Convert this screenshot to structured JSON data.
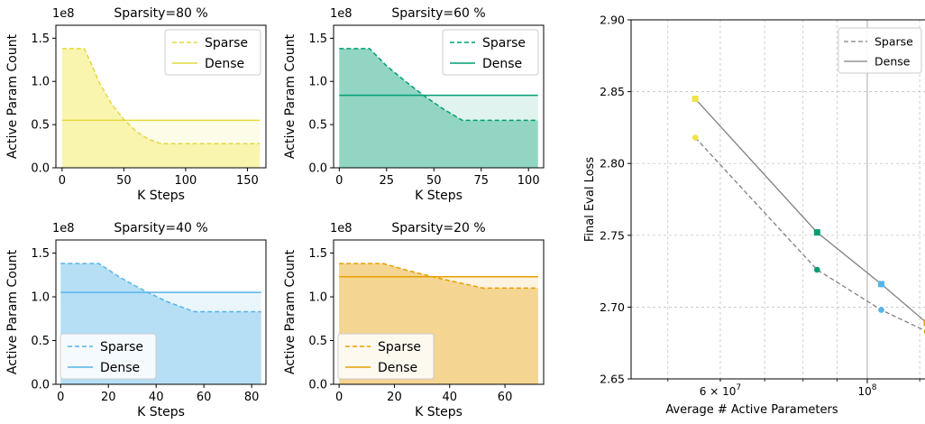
{
  "chart_data": [
    {
      "type": "area",
      "title": "Sparsity=80 %",
      "xlabel": "K Steps",
      "ylabel": "Active Param Count",
      "y_offset_label": "1e8",
      "color": "#F0E442",
      "xlim": [
        -5,
        165
      ],
      "ylim": [
        0,
        1.65
      ],
      "xticks": [
        0,
        50,
        100,
        150
      ],
      "yticks": [
        0.0,
        0.5,
        1.0,
        1.5
      ],
      "xtick_labels": [
        "0",
        "50",
        "100",
        "150"
      ],
      "ytick_labels": [
        "0.0",
        "0.5",
        "1.0",
        "1.5"
      ],
      "legend": {
        "position": "top-right",
        "entries": [
          "Sparse",
          "Dense"
        ]
      },
      "sparse": {
        "x": [
          0,
          18,
          25,
          30,
          40,
          50,
          60,
          70,
          80,
          160
        ],
        "y": [
          1.38,
          1.38,
          1.16,
          0.99,
          0.74,
          0.56,
          0.42,
          0.33,
          0.28,
          0.28
        ]
      },
      "dense": {
        "x": [
          0,
          160
        ],
        "y": [
          0.55,
          0.55
        ]
      }
    },
    {
      "type": "area",
      "title": "Sparsity=60 %",
      "xlabel": "K Steps",
      "ylabel": "Active Param Count",
      "y_offset_label": "1e8",
      "color": "#009E73",
      "xlim": [
        -3,
        108
      ],
      "ylim": [
        0,
        1.65
      ],
      "xticks": [
        0,
        25,
        50,
        75,
        100
      ],
      "yticks": [
        0.0,
        0.5,
        1.0,
        1.5
      ],
      "xtick_labels": [
        "0",
        "25",
        "50",
        "75",
        "100"
      ],
      "ytick_labels": [
        "0.0",
        "0.5",
        "1.0",
        "1.5"
      ],
      "legend": {
        "position": "top-right",
        "entries": [
          "Sparse",
          "Dense"
        ]
      },
      "sparse": {
        "x": [
          0,
          16,
          25,
          35,
          45,
          55,
          65,
          105
        ],
        "y": [
          1.38,
          1.38,
          1.18,
          1.0,
          0.83,
          0.68,
          0.55,
          0.55
        ]
      },
      "dense": {
        "x": [
          0,
          105
        ],
        "y": [
          0.84,
          0.84
        ]
      }
    },
    {
      "type": "area",
      "title": "Sparsity=40 %",
      "xlabel": "K Steps",
      "ylabel": "Active Param Count",
      "y_offset_label": "1e8",
      "color": "#56B4E9",
      "xlim": [
        -2,
        86
      ],
      "ylim": [
        0,
        1.65
      ],
      "xticks": [
        0,
        20,
        40,
        60,
        80
      ],
      "yticks": [
        0.0,
        0.5,
        1.0,
        1.5
      ],
      "xtick_labels": [
        "0",
        "20",
        "40",
        "60",
        "80"
      ],
      "ytick_labels": [
        "0.0",
        "0.5",
        "1.0",
        "1.5"
      ],
      "legend": {
        "position": "bottom-left",
        "entries": [
          "Sparse",
          "Dense"
        ]
      },
      "sparse": {
        "x": [
          0,
          16,
          25,
          35,
          45,
          56,
          84
        ],
        "y": [
          1.38,
          1.38,
          1.22,
          1.07,
          0.94,
          0.83,
          0.83
        ]
      },
      "dense": {
        "x": [
          0,
          84
        ],
        "y": [
          1.05,
          1.05
        ]
      }
    },
    {
      "type": "area",
      "title": "Sparsity=20 %",
      "xlabel": "K Steps",
      "ylabel": "Active Param Count",
      "y_offset_label": "1e8",
      "color": "#E69F00",
      "xlim": [
        -2,
        74
      ],
      "ylim": [
        0,
        1.65
      ],
      "xticks": [
        0,
        20,
        40,
        60
      ],
      "yticks": [
        0.0,
        0.5,
        1.0,
        1.5
      ],
      "xtick_labels": [
        "0",
        "20",
        "40",
        "60"
      ],
      "ytick_labels": [
        "0.0",
        "0.5",
        "1.0",
        "1.5"
      ],
      "legend": {
        "position": "bottom-left",
        "entries": [
          "Sparse",
          "Dense"
        ]
      },
      "sparse": {
        "x": [
          0,
          16,
          25,
          35,
          45,
          52,
          72
        ],
        "y": [
          1.38,
          1.38,
          1.3,
          1.22,
          1.15,
          1.1,
          1.1
        ]
      },
      "dense": {
        "x": [
          0,
          72
        ],
        "y": [
          1.23,
          1.23
        ]
      }
    },
    {
      "type": "line",
      "title": "",
      "xlabel": "Average # Active Parameters",
      "ylabel": "Final Eval Loss",
      "xscale": "log",
      "xlim": [
        44000000,
        123000000
      ],
      "ylim": [
        2.65,
        2.9
      ],
      "yticks": [
        2.65,
        2.7,
        2.75,
        2.8,
        2.85,
        2.9
      ],
      "ytick_labels": [
        "2.65",
        "2.70",
        "2.75",
        "2.80",
        "2.85",
        "2.90"
      ],
      "xticks": [
        60000000,
        100000000
      ],
      "xtick_labels": [
        "6×10^7",
        "10^8"
      ],
      "grid": true,
      "legend": {
        "position": "top-right",
        "entries": [
          "Sparse",
          "Dense"
        ]
      },
      "series": [
        {
          "name": "Sparse",
          "style": "dashed",
          "marker": "circle",
          "x": [
            55000000,
            84000000,
            105000000,
            123000000
          ],
          "y": [
            2.818,
            2.726,
            2.698,
            2.683
          ],
          "colors": [
            "#F0E442",
            "#009E73",
            "#56B4E9",
            "#E69F00"
          ]
        },
        {
          "name": "Dense",
          "style": "solid",
          "marker": "square",
          "x": [
            55000000,
            84000000,
            105000000,
            123000000
          ],
          "y": [
            2.845,
            2.752,
            2.716,
            2.689
          ],
          "colors": [
            "#F0E442",
            "#009E73",
            "#56B4E9",
            "#E69F00"
          ]
        }
      ]
    }
  ]
}
